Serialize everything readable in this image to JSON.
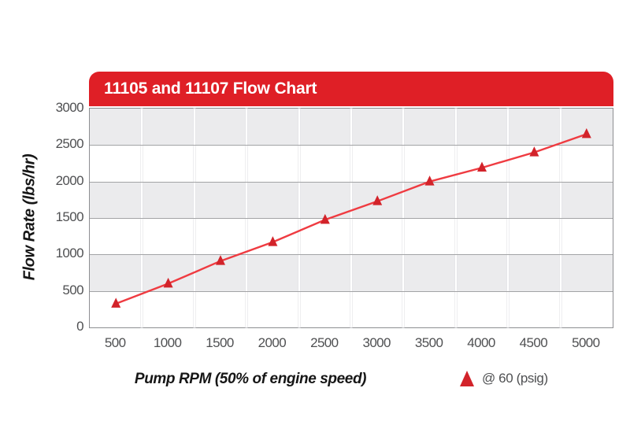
{
  "header": {
    "title": "11105 and 11107 Flow Chart",
    "background": "#df1f26",
    "text_color": "#ffffff"
  },
  "chart_data": {
    "type": "line",
    "title": "11105 and 11107 Flow Chart",
    "xlabel": "Pump RPM (50% of engine speed)",
    "ylabel": "Flow Rate (lbs/hr)",
    "categories": [
      500,
      1000,
      1500,
      2000,
      2500,
      3000,
      3500,
      4000,
      4500,
      5000
    ],
    "series": [
      {
        "name": "@ 60 (psig)",
        "marker": "triangle-up",
        "line_color": "#ef3b41",
        "marker_color": "#d2232a",
        "values": [
          325,
          600,
          910,
          1170,
          1475,
          1730,
          2000,
          2190,
          2400,
          2650
        ]
      }
    ],
    "ylim": [
      0,
      3000
    ],
    "yticks": [
      0,
      500,
      1000,
      1500,
      2000,
      2500,
      3000
    ],
    "xaxis_type": "category",
    "grid": "horizontal gray lines every 500; light vertical lines at category boundaries",
    "plot_bands": "alternating gray/white horizontal bands of 500 units, gray at top (2500-3000)",
    "legend_position": "bottom-right outside plot"
  },
  "colors": {
    "band_gray": "#ebebed",
    "band_white": "#ffffff",
    "hgrid": "#a2a3a5",
    "plot_border": "#8d8e91",
    "tick_text": "#4f5052",
    "header_red": "#df1f26",
    "line_red": "#ef3b41",
    "marker_red": "#d2232a"
  }
}
